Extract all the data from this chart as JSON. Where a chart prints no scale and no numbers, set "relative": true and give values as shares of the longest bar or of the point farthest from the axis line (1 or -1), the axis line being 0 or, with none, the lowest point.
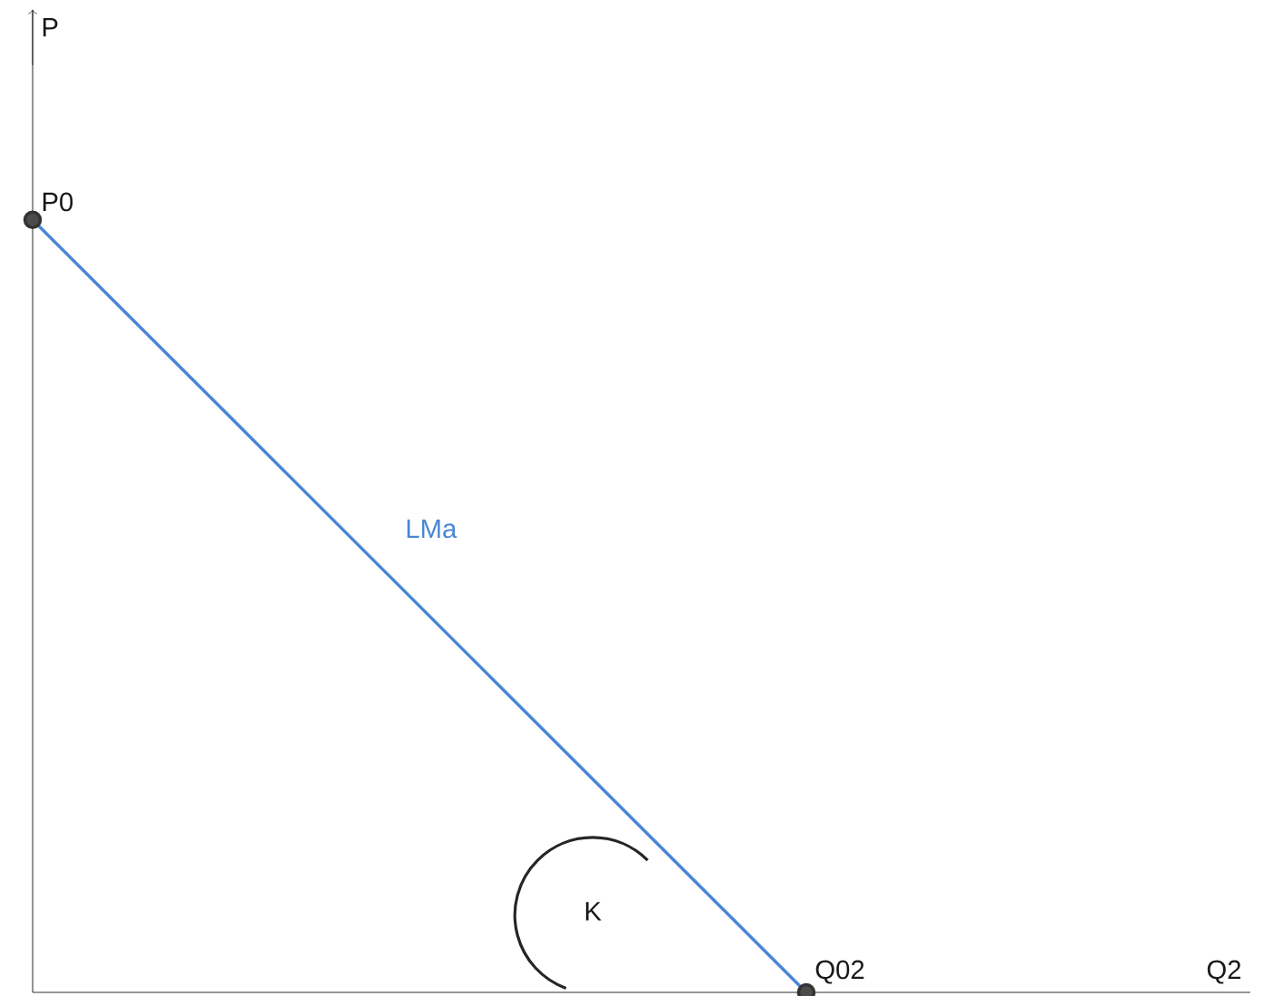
{
  "chart_data": {
    "type": "line",
    "relative": true,
    "categories": [
      null,
      null
    ],
    "series": [
      {
        "name": "LMa",
        "color": "#4a86d4",
        "values": [
          1,
          0
        ]
      }
    ],
    "marker": "circle",
    "line_style": "solid",
    "annotations": [
      "P",
      "P0",
      "Q02",
      "K",
      "Q2"
    ]
  }
}
